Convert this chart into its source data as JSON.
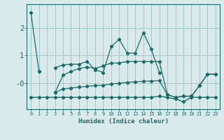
{
  "xlabel": "Humidex (Indice chaleur)",
  "x": [
    0,
    1,
    2,
    3,
    4,
    5,
    6,
    7,
    8,
    9,
    10,
    11,
    12,
    13,
    14,
    15,
    16,
    17,
    18,
    19,
    20,
    21,
    22,
    23
  ],
  "line1": [
    2.55,
    0.42,
    null,
    null,
    null,
    null,
    null,
    null,
    null,
    null,
    null,
    null,
    null,
    null,
    null,
    null,
    null,
    null,
    null,
    null,
    null,
    null,
    null,
    null
  ],
  "line2": [
    null,
    0.42,
    null,
    0.55,
    0.65,
    0.68,
    0.68,
    0.78,
    0.48,
    0.38,
    1.32,
    1.58,
    1.08,
    1.08,
    1.82,
    1.22,
    0.38,
    null,
    null,
    null,
    null,
    null,
    null,
    null
  ],
  "line3": [
    null,
    null,
    null,
    -0.35,
    0.28,
    0.42,
    0.52,
    0.58,
    0.52,
    0.62,
    0.72,
    0.72,
    0.78,
    0.78,
    0.78,
    0.78,
    0.78,
    -0.42,
    -0.52,
    -0.48,
    -0.48,
    -0.1,
    0.32,
    0.32
  ],
  "line4_flat": [
    -0.52,
    -0.52,
    -0.52,
    -0.52,
    -0.52,
    -0.52,
    -0.52,
    -0.52,
    -0.52,
    -0.52,
    -0.52,
    -0.52,
    -0.52,
    -0.52,
    -0.52,
    -0.52,
    -0.48,
    -0.52,
    -0.58,
    -0.68,
    -0.52,
    -0.52,
    -0.52,
    -0.52
  ],
  "line5_trend": [
    null,
    null,
    null,
    -0.35,
    -0.22,
    -0.18,
    -0.15,
    -0.12,
    -0.1,
    -0.08,
    -0.04,
    -0.01,
    0.02,
    0.04,
    0.06,
    0.07,
    0.08,
    -0.42,
    -0.52,
    -0.48,
    -0.48,
    -0.1,
    0.32,
    0.32
  ],
  "bg_color": "#daeaea",
  "line_color": "#1a6b6b",
  "grid_color": "#a0c8c8",
  "yticks": [
    0,
    1,
    2
  ],
  "ylim": [
    -0.95,
    2.85
  ],
  "xlim": [
    -0.5,
    23.5
  ]
}
